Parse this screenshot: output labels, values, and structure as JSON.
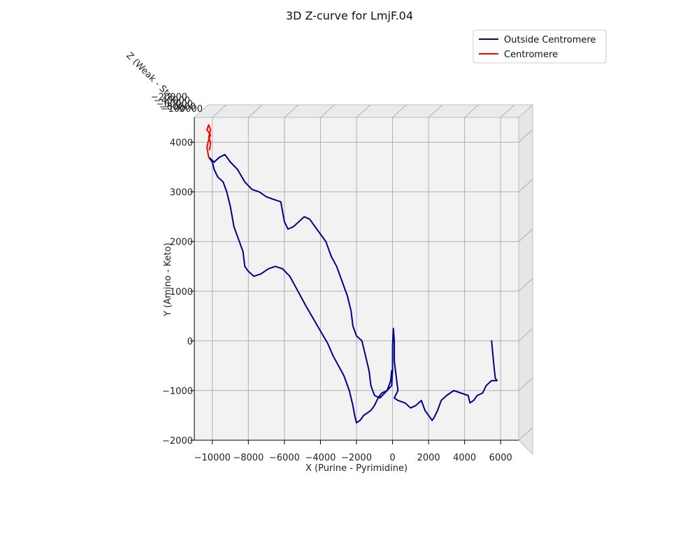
{
  "chart_data": {
    "type": "line",
    "projection": "3d",
    "title": "3D Z-curve for LmjF.04",
    "xlabel": "X (Purine - Pyrimidine)",
    "ylabel": "Y (Amino - Keto)",
    "zlabel": "Z (Weak - Strong)",
    "xlim": [
      -11000,
      7000
    ],
    "ylim": [
      -2000,
      4500
    ],
    "x_ticks": [
      -10000,
      -8000,
      -6000,
      -4000,
      -2000,
      0,
      2000,
      4000,
      6000
    ],
    "x_tick_labels": [
      "−10000",
      "−8000",
      "−6000",
      "−4000",
      "−2000",
      "0",
      "2000",
      "4000",
      "6000"
    ],
    "y_ticks": [
      -2000,
      -1000,
      0,
      1000,
      2000,
      3000,
      4000
    ],
    "y_tick_labels": [
      "−2000",
      "−1000",
      "0",
      "1000",
      "2000",
      "3000",
      "4000"
    ],
    "z_tick_labels": [
      "−20000",
      "−40000",
      "−60000",
      "−80000",
      "−100000"
    ],
    "grid": true,
    "legend_position": "top-right",
    "series": [
      {
        "name": "Outside Centromere",
        "color": "#00008b",
        "points": [
          [
            5500,
            0
          ],
          [
            5600,
            -400
          ],
          [
            5700,
            -750
          ],
          [
            5800,
            -800
          ],
          [
            5500,
            -800
          ],
          [
            5200,
            -900
          ],
          [
            5000,
            -1050
          ],
          [
            4700,
            -1100
          ],
          [
            4500,
            -1200
          ],
          [
            4300,
            -1250
          ],
          [
            4200,
            -1100
          ],
          [
            3800,
            -1050
          ],
          [
            3400,
            -1000
          ],
          [
            3000,
            -1100
          ],
          [
            2700,
            -1200
          ],
          [
            2500,
            -1400
          ],
          [
            2300,
            -1550
          ],
          [
            2200,
            -1600
          ],
          [
            2000,
            -1500
          ],
          [
            1800,
            -1400
          ],
          [
            1600,
            -1200
          ],
          [
            1300,
            -1300
          ],
          [
            1000,
            -1350
          ],
          [
            700,
            -1250
          ],
          [
            300,
            -1200
          ],
          [
            100,
            -1150
          ],
          [
            300,
            -1000
          ],
          [
            200,
            -700
          ],
          [
            100,
            -400
          ],
          [
            100,
            0
          ],
          [
            50,
            250
          ],
          [
            0,
            -100
          ],
          [
            0,
            -600
          ],
          [
            -50,
            -900
          ],
          [
            -300,
            -1000
          ],
          [
            -600,
            -1050
          ],
          [
            -800,
            -1150
          ],
          [
            -1000,
            -1300
          ],
          [
            -1200,
            -1400
          ],
          [
            -1400,
            -1450
          ],
          [
            -1600,
            -1500
          ],
          [
            -1800,
            -1600
          ],
          [
            -2000,
            -1650
          ],
          [
            -2100,
            -1500
          ],
          [
            -2200,
            -1300
          ],
          [
            -2400,
            -1000
          ],
          [
            -2700,
            -700
          ],
          [
            -3000,
            -500
          ],
          [
            -3300,
            -300
          ],
          [
            -3600,
            -50
          ],
          [
            -4000,
            200
          ],
          [
            -4400,
            450
          ],
          [
            -4800,
            700
          ],
          [
            -5100,
            900
          ],
          [
            -5400,
            1100
          ],
          [
            -5700,
            1300
          ],
          [
            -6100,
            1450
          ],
          [
            -6500,
            1500
          ],
          [
            -6900,
            1450
          ],
          [
            -7300,
            1350
          ],
          [
            -7700,
            1300
          ],
          [
            -8000,
            1400
          ],
          [
            -8200,
            1500
          ],
          [
            -8300,
            1800
          ],
          [
            -8500,
            2000
          ],
          [
            -8800,
            2300
          ],
          [
            -9000,
            2700
          ],
          [
            -9200,
            3000
          ],
          [
            -9400,
            3200
          ],
          [
            -9700,
            3300
          ],
          [
            -9900,
            3450
          ],
          [
            -10000,
            3600
          ],
          [
            -10200,
            3700
          ],
          [
            -9900,
            3600
          ],
          [
            -9600,
            3700
          ],
          [
            -9300,
            3750
          ],
          [
            -9000,
            3600
          ],
          [
            -8600,
            3450
          ],
          [
            -8200,
            3200
          ],
          [
            -7800,
            3050
          ],
          [
            -7400,
            3000
          ],
          [
            -7000,
            2900
          ],
          [
            -6600,
            2850
          ],
          [
            -6200,
            2800
          ],
          [
            -6100,
            2600
          ],
          [
            -6000,
            2400
          ],
          [
            -5800,
            2250
          ],
          [
            -5500,
            2300
          ],
          [
            -5200,
            2400
          ],
          [
            -4900,
            2500
          ],
          [
            -4600,
            2450
          ],
          [
            -4300,
            2300
          ],
          [
            -4000,
            2150
          ],
          [
            -3700,
            2000
          ],
          [
            -3400,
            1700
          ],
          [
            -3100,
            1500
          ],
          [
            -2800,
            1200
          ],
          [
            -2500,
            900
          ],
          [
            -2300,
            600
          ],
          [
            -2200,
            300
          ],
          [
            -2000,
            100
          ],
          [
            -1700,
            0
          ],
          [
            -1500,
            -300
          ],
          [
            -1300,
            -600
          ],
          [
            -1200,
            -900
          ],
          [
            -1000,
            -1100
          ],
          [
            -700,
            -1150
          ],
          [
            -300,
            -1000
          ],
          [
            -100,
            -800
          ],
          [
            -50,
            -600
          ]
        ]
      },
      {
        "name": "Centromere",
        "color": "#ff0000",
        "points": [
          [
            -10200,
            3700
          ],
          [
            -10300,
            3900
          ],
          [
            -10200,
            4050
          ],
          [
            -10100,
            4150
          ],
          [
            -10300,
            4250
          ],
          [
            -10200,
            4350
          ],
          [
            -10100,
            4250
          ],
          [
            -10200,
            4100
          ],
          [
            -10100,
            4000
          ],
          [
            -10150,
            3850
          ]
        ]
      }
    ]
  }
}
